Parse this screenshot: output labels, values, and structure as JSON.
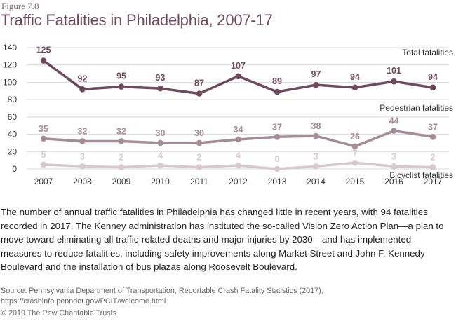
{
  "figure_label": "Figure 7.8",
  "title": "Traffic Fatalities in Philadelphia, 2007-17",
  "colors": {
    "total": "#6e4a5c",
    "pedestrian": "#a58c96",
    "bicyclist": "#d8c9cf",
    "grid": "#d9d9d9"
  },
  "chart_data": {
    "type": "line",
    "title": "Traffic Fatalities in Philadelphia, 2007-17",
    "xlabel": "",
    "ylabel": "",
    "categories": [
      "2007",
      "2008",
      "2009",
      "2010",
      "2011",
      "2012",
      "2013",
      "2014",
      "2015",
      "2016",
      "2017"
    ],
    "ylim": [
      0,
      140
    ],
    "yticks": [
      0,
      20,
      40,
      60,
      80,
      100,
      120,
      140
    ],
    "grid": true,
    "series": [
      {
        "name": "Total fatalities",
        "key": "total",
        "values": [
          125,
          92,
          95,
          93,
          87,
          107,
          89,
          97,
          94,
          101,
          94
        ]
      },
      {
        "name": "Pedestrian fatalities",
        "key": "pedestrian",
        "values": [
          35,
          32,
          32,
          30,
          30,
          34,
          37,
          38,
          26,
          44,
          37
        ]
      },
      {
        "name": "Bicyclist fatalities",
        "key": "bicyclist",
        "values": [
          5,
          3,
          2,
          4,
          2,
          4,
          0,
          3,
          7,
          3,
          2
        ]
      }
    ]
  },
  "body_text": "The number of annual traffic fatalities in Philadelphia has changed little in recent years, with 94 fatalities recorded in 2017. The Kenney administration has instituted the so-called Vision Zero Action Plan—a plan to move toward eliminating all traffic-related deaths and major injuries by 2030—and has implemented measures to reduce fatalities, including safety improvements along Market Street and John F. Kennedy Boulevard and the installation of bus plazas along Roosevelt Boulevard.",
  "source": "Source: Pennsylvania Department of Transportation, Reportable Crash Fatality Statistics (2017), https://crashinfo.penndot.gov/PCIT/welcome.html",
  "copyright": "© 2019 The Pew Charitable Trusts"
}
